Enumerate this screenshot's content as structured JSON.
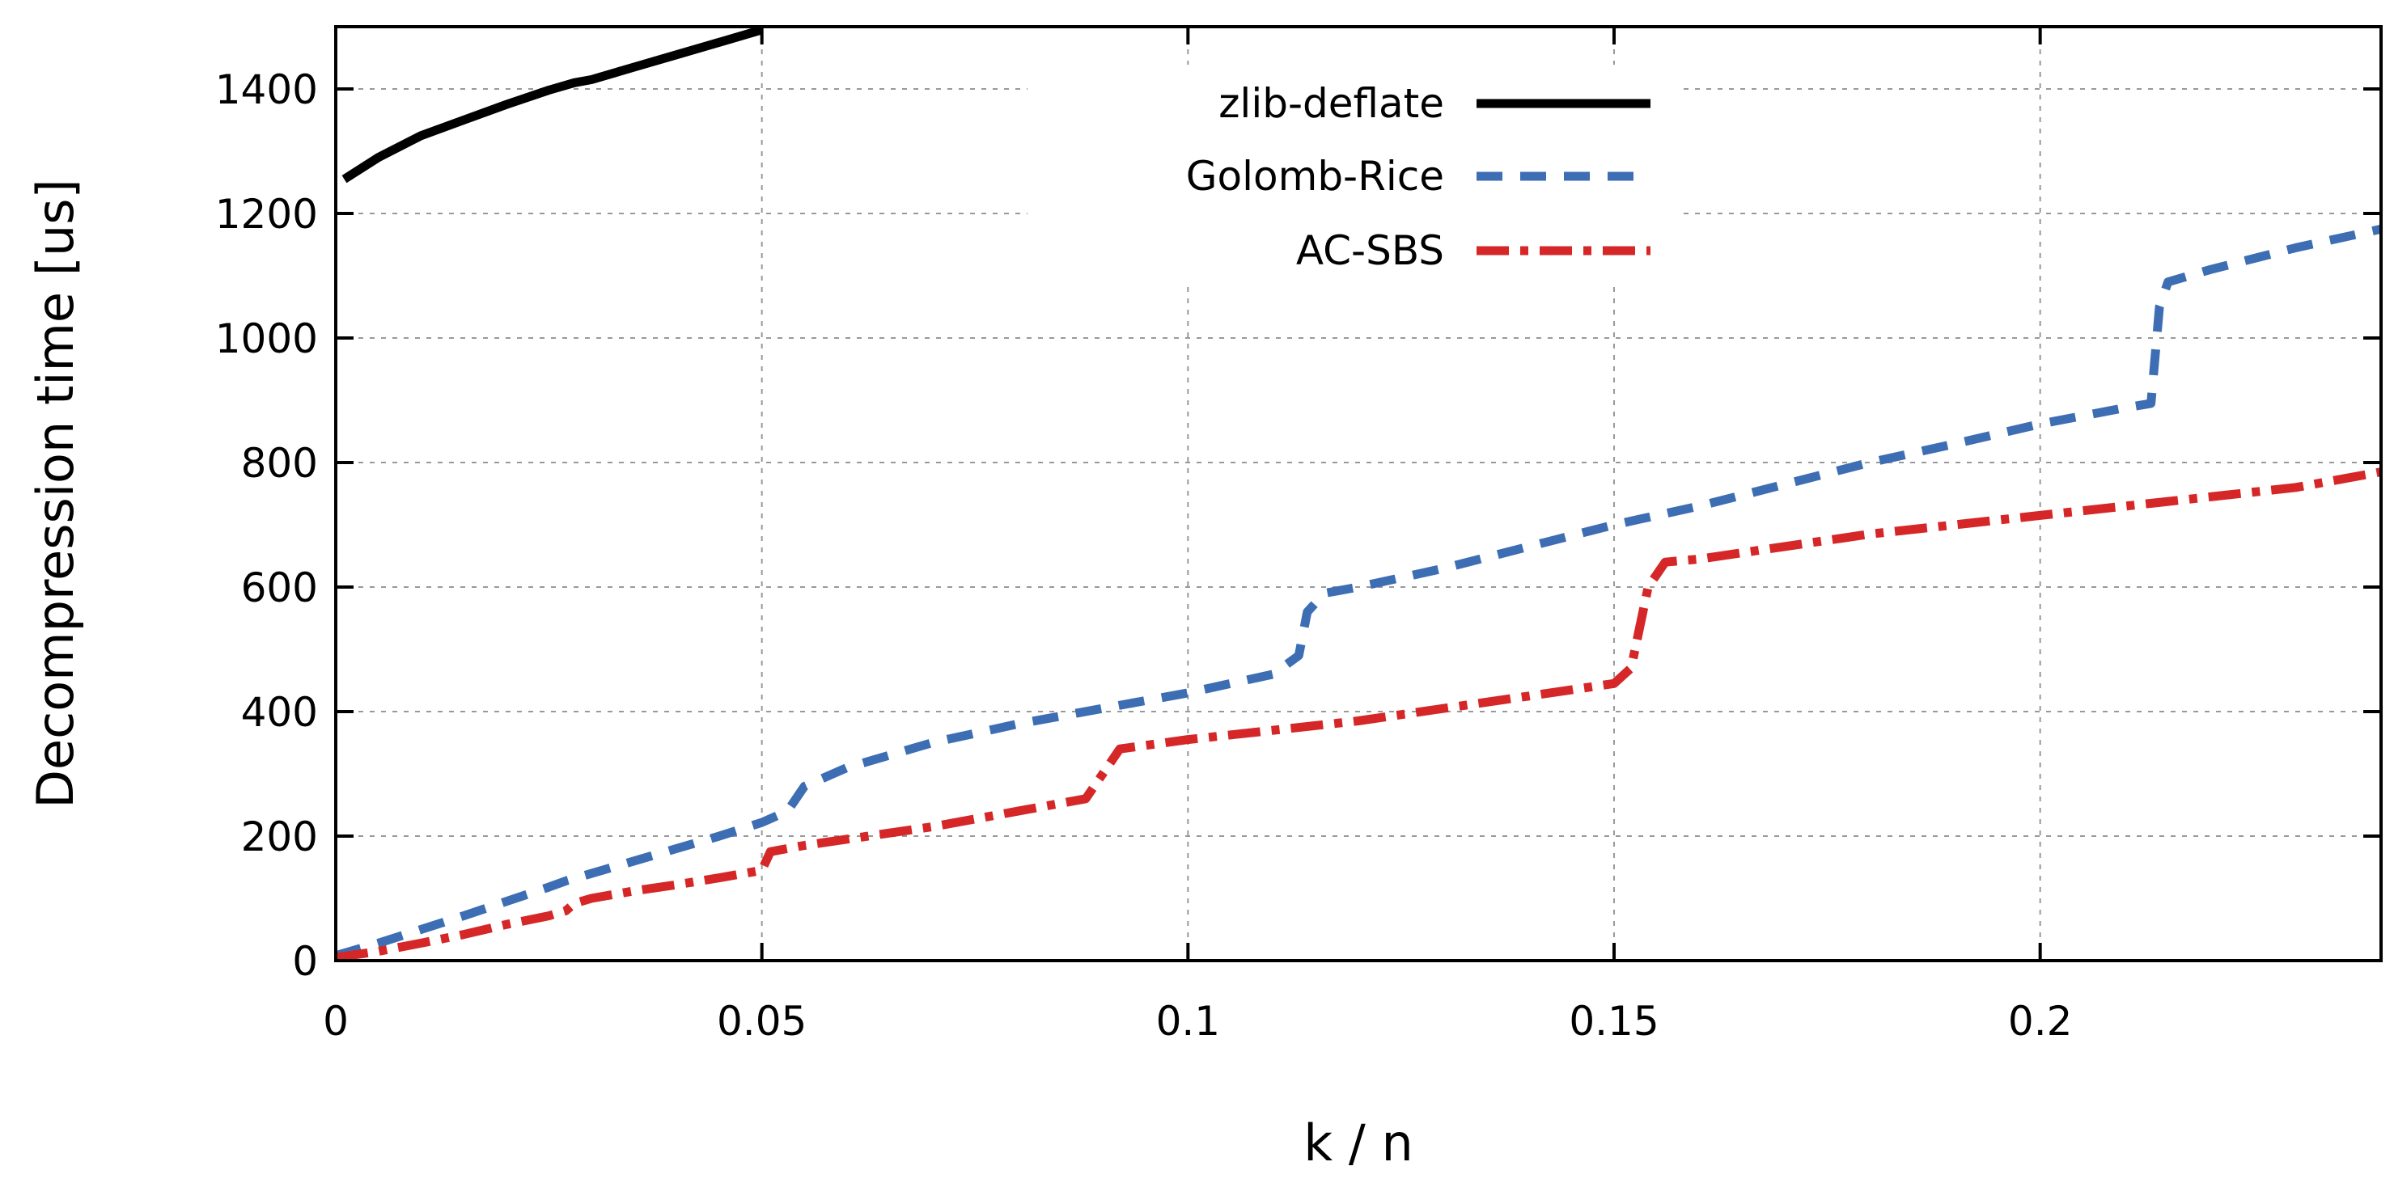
{
  "chart_data": {
    "type": "line",
    "title": "",
    "xlabel": "k / n",
    "ylabel": "Decompression time [us]",
    "xlim": [
      0,
      0.24
    ],
    "ylim": [
      0,
      1500
    ],
    "grid": true,
    "legend_position": "top-center",
    "x_ticks": [
      0,
      0.05,
      0.1,
      0.15,
      0.2
    ],
    "x_tick_labels": [
      "0",
      "0.05",
      "0.1",
      "0.15",
      "0.2"
    ],
    "y_ticks": [
      0,
      200,
      400,
      600,
      800,
      1000,
      1200,
      1400
    ],
    "y_tick_labels": [
      "0",
      "200",
      "400",
      "600",
      "800",
      "1000",
      "1200",
      "1400"
    ],
    "series": [
      {
        "name": "zlib-deflate",
        "color": "#000000",
        "dash": "solid",
        "x": [
          0.001,
          0.005,
          0.01,
          0.015,
          0.02,
          0.025,
          0.028,
          0.03,
          0.035,
          0.04,
          0.045,
          0.05
        ],
        "y": [
          1255,
          1290,
          1325,
          1350,
          1375,
          1398,
          1410,
          1415,
          1435,
          1455,
          1475,
          1495
        ]
      },
      {
        "name": "Golomb-Rice",
        "color": "#3d6eb4",
        "dash": "dash",
        "x": [
          0,
          0.005,
          0.01,
          0.015,
          0.02,
          0.025,
          0.027,
          0.03,
          0.035,
          0.04,
          0.045,
          0.05,
          0.053,
          0.055,
          0.06,
          0.07,
          0.08,
          0.09,
          0.1,
          0.105,
          0.11,
          0.113,
          0.114,
          0.116,
          0.12,
          0.13,
          0.14,
          0.15,
          0.16,
          0.17,
          0.18,
          0.19,
          0.2,
          0.21,
          0.213,
          0.214,
          0.215,
          0.22,
          0.23,
          0.24
        ],
        "y": [
          8,
          28,
          50,
          72,
          95,
          118,
          128,
          140,
          160,
          180,
          200,
          222,
          240,
          280,
          310,
          350,
          380,
          405,
          430,
          445,
          460,
          490,
          560,
          590,
          600,
          630,
          665,
          700,
          730,
          765,
          800,
          830,
          862,
          888,
          895,
          1050,
          1090,
          1110,
          1145,
          1175
        ]
      },
      {
        "name": "AC-SBS",
        "color": "#d62728",
        "dash": "dashdot",
        "x": [
          0,
          0.005,
          0.01,
          0.015,
          0.02,
          0.025,
          0.027,
          0.028,
          0.03,
          0.035,
          0.04,
          0.045,
          0.05,
          0.051,
          0.055,
          0.06,
          0.07,
          0.08,
          0.088,
          0.09,
          0.092,
          0.1,
          0.11,
          0.12,
          0.13,
          0.14,
          0.15,
          0.152,
          0.154,
          0.156,
          0.16,
          0.17,
          0.18,
          0.19,
          0.2,
          0.21,
          0.22,
          0.23,
          0.24
        ],
        "y": [
          5,
          15,
          28,
          42,
          58,
          72,
          80,
          92,
          100,
          112,
          122,
          133,
          145,
          175,
          185,
          195,
          215,
          240,
          260,
          300,
          340,
          355,
          370,
          385,
          405,
          425,
          445,
          470,
          600,
          640,
          645,
          665,
          685,
          700,
          715,
          730,
          745,
          760,
          785
        ]
      }
    ]
  }
}
